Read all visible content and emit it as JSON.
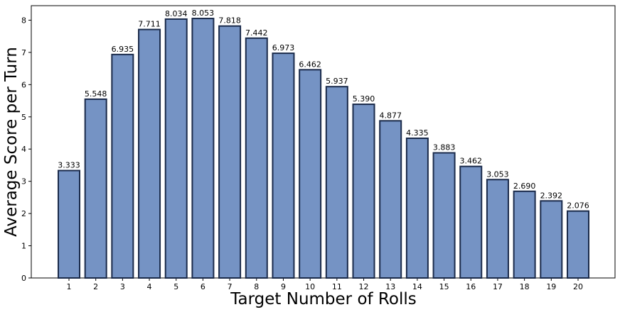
{
  "chart_data": {
    "type": "bar",
    "title": "",
    "xlabel": "Target Number of Rolls",
    "ylabel": "Average Score per Turn",
    "categories": [
      "1",
      "2",
      "3",
      "4",
      "5",
      "6",
      "7",
      "8",
      "9",
      "10",
      "11",
      "12",
      "13",
      "14",
      "15",
      "16",
      "17",
      "18",
      "19",
      "20"
    ],
    "values": [
      3.333,
      5.548,
      6.935,
      7.711,
      8.034,
      8.053,
      7.818,
      7.442,
      6.973,
      6.462,
      5.937,
      5.39,
      4.877,
      4.335,
      3.883,
      3.462,
      3.053,
      2.69,
      2.392,
      2.076
    ],
    "value_labels": [
      "3.333",
      "5.548",
      "6.935",
      "7.711",
      "8.034",
      "8.053",
      "7.818",
      "7.442",
      "6.973",
      "6.462",
      "5.937",
      "5.390",
      "4.877",
      "4.335",
      "3.883",
      "3.462",
      "3.053",
      "2.690",
      "2.392",
      "2.076"
    ],
    "yticks": [
      "0",
      "1",
      "2",
      "3",
      "4",
      "5",
      "6",
      "7",
      "8"
    ],
    "ylim": [
      0,
      8.45
    ],
    "grid": false,
    "legend": "none",
    "colors": {
      "bar_fill": "#7593c4",
      "bar_edge": "#1a2a4a"
    }
  }
}
